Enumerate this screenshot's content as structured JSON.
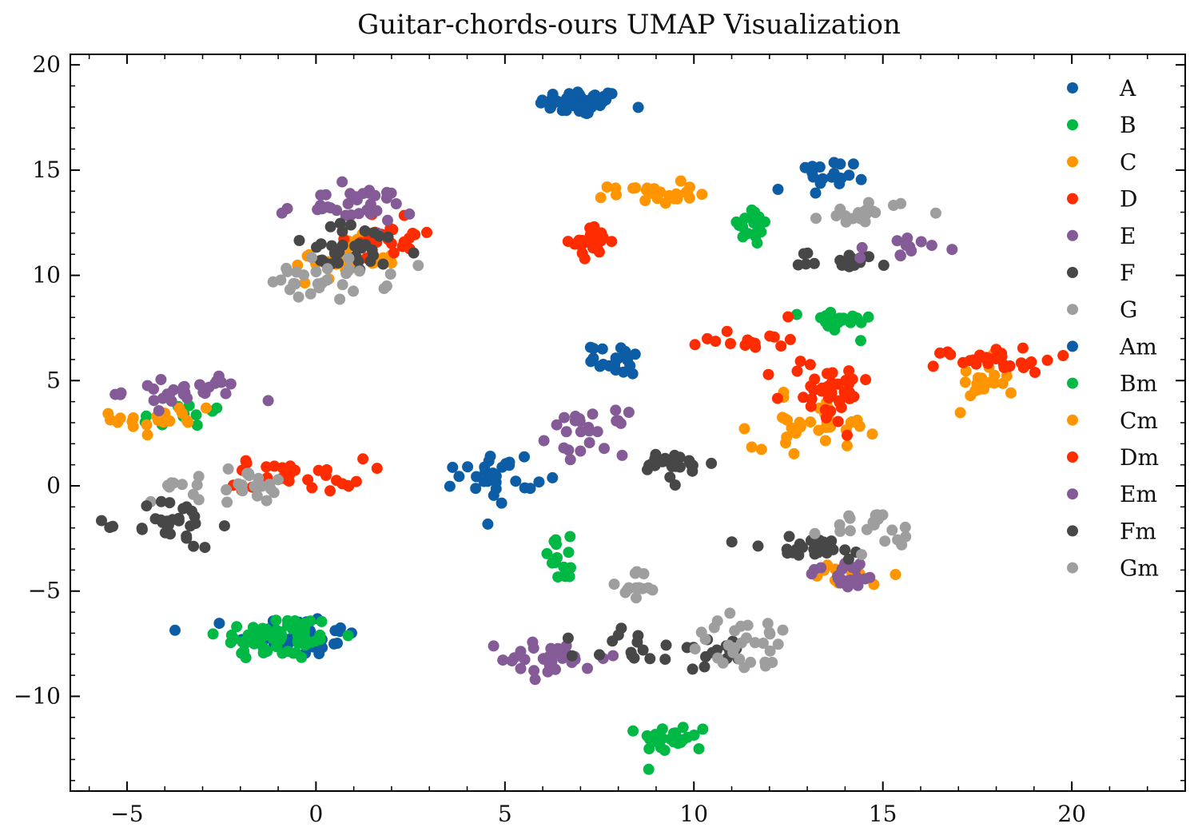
{
  "chart_data": {
    "type": "scatter",
    "title": "Guitar-chords-ours UMAP Visualization",
    "xlabel": "",
    "ylabel": "",
    "xlim": [
      -6.5,
      23.0
    ],
    "ylim": [
      -14.5,
      20.5
    ],
    "xticks": [
      -5,
      0,
      5,
      10,
      15,
      20
    ],
    "yticks": [
      -10,
      -5,
      0,
      5,
      10,
      15,
      20
    ],
    "xtick_labels": [
      "−5",
      "0",
      "5",
      "10",
      "15",
      "20"
    ],
    "ytick_labels": [
      "−10",
      "−5",
      "0",
      "5",
      "10",
      "15",
      "20"
    ],
    "grid": false,
    "legend_position": "top-right",
    "series": [
      {
        "name": "A",
        "color": "#0C5DA5",
        "clusters": [
          {
            "cx": 7.0,
            "cy": 18.2,
            "sx": 0.55,
            "sy": 0.3,
            "n": 60
          },
          {
            "cx": -0.5,
            "cy": -7.1,
            "sx": 0.8,
            "sy": 0.5,
            "n": 40
          }
        ]
      },
      {
        "name": "B",
        "color": "#00B945",
        "clusters": [
          {
            "cx": -1.0,
            "cy": -7.2,
            "sx": 0.8,
            "sy": 0.55,
            "n": 70
          },
          {
            "cx": 9.5,
            "cy": -12.0,
            "sx": 0.45,
            "sy": 0.35,
            "n": 25
          },
          {
            "cx": -3.6,
            "cy": 3.2,
            "sx": 0.6,
            "sy": 0.4,
            "n": 15
          }
        ]
      },
      {
        "name": "C",
        "color": "#FF9500",
        "clusters": [
          {
            "cx": 0.8,
            "cy": 10.8,
            "sx": 0.7,
            "sy": 0.5,
            "n": 30
          },
          {
            "cx": 8.9,
            "cy": 13.9,
            "sx": 0.55,
            "sy": 0.25,
            "n": 25
          },
          {
            "cx": -4.0,
            "cy": 3.2,
            "sx": 0.7,
            "sy": 0.5,
            "n": 20
          }
        ]
      },
      {
        "name": "D",
        "color": "#FF2C00",
        "clusters": [
          {
            "cx": 7.3,
            "cy": 11.6,
            "sx": 0.25,
            "sy": 0.35,
            "n": 25
          },
          {
            "cx": 2.0,
            "cy": 12.0,
            "sx": 0.6,
            "sy": 0.6,
            "n": 25
          },
          {
            "cx": -0.5,
            "cy": 0.5,
            "sx": 0.9,
            "sy": 0.4,
            "n": 30
          }
        ]
      },
      {
        "name": "E",
        "color": "#845B97",
        "clusters": [
          {
            "cx": 0.8,
            "cy": 13.3,
            "sx": 0.9,
            "sy": 0.45,
            "n": 35
          },
          {
            "cx": -3.5,
            "cy": 4.5,
            "sx": 0.8,
            "sy": 0.4,
            "n": 30
          },
          {
            "cx": 7.2,
            "cy": 2.5,
            "sx": 0.5,
            "sy": 0.5,
            "n": 25
          }
        ]
      },
      {
        "name": "F",
        "color": "#474747",
        "clusters": [
          {
            "cx": 1.0,
            "cy": 11.2,
            "sx": 0.9,
            "sy": 0.6,
            "n": 35
          },
          {
            "cx": 9.5,
            "cy": 1.0,
            "sx": 0.5,
            "sy": 0.35,
            "n": 25
          },
          {
            "cx": 14.0,
            "cy": 10.7,
            "sx": 0.6,
            "sy": 0.2,
            "n": 20
          }
        ]
      },
      {
        "name": "G",
        "color": "#9E9E9E",
        "clusters": [
          {
            "cx": 0.3,
            "cy": 9.8,
            "sx": 0.8,
            "sy": 0.5,
            "n": 30
          },
          {
            "cx": -2.5,
            "cy": 0.0,
            "sx": 0.9,
            "sy": 0.4,
            "n": 30
          },
          {
            "cx": 14.6,
            "cy": 13.0,
            "sx": 0.6,
            "sy": 0.3,
            "n": 20
          }
        ]
      },
      {
        "name": "Am",
        "color": "#0C5DA5",
        "clusters": [
          {
            "cx": 4.8,
            "cy": 0.5,
            "sx": 0.5,
            "sy": 0.6,
            "n": 30
          },
          {
            "cx": 8.0,
            "cy": 6.0,
            "sx": 0.35,
            "sy": 0.35,
            "n": 20
          },
          {
            "cx": 13.2,
            "cy": 14.5,
            "sx": 0.5,
            "sy": 0.5,
            "n": 20
          }
        ]
      },
      {
        "name": "Bm",
        "color": "#00B945",
        "clusters": [
          {
            "cx": 13.8,
            "cy": 7.8,
            "sx": 0.45,
            "sy": 0.3,
            "n": 20
          },
          {
            "cx": 11.5,
            "cy": 12.3,
            "sx": 0.35,
            "sy": 0.5,
            "n": 18
          },
          {
            "cx": 6.5,
            "cy": -3.5,
            "sx": 0.3,
            "sy": 0.5,
            "n": 15
          }
        ]
      },
      {
        "name": "Cm",
        "color": "#FF9500",
        "clusters": [
          {
            "cx": 13.2,
            "cy": 3.0,
            "sx": 0.8,
            "sy": 0.6,
            "n": 35
          },
          {
            "cx": 17.6,
            "cy": 4.8,
            "sx": 0.35,
            "sy": 0.6,
            "n": 20
          },
          {
            "cx": 14.0,
            "cy": -4.2,
            "sx": 0.6,
            "sy": 0.3,
            "n": 18
          }
        ]
      },
      {
        "name": "Dm",
        "color": "#FF2C00",
        "clusters": [
          {
            "cx": 13.5,
            "cy": 4.5,
            "sx": 0.6,
            "sy": 0.8,
            "n": 40
          },
          {
            "cx": 18.0,
            "cy": 6.0,
            "sx": 0.8,
            "sy": 0.3,
            "n": 30
          },
          {
            "cx": 11.5,
            "cy": 7.0,
            "sx": 0.6,
            "sy": 0.3,
            "n": 15
          }
        ]
      },
      {
        "name": "Em",
        "color": "#845B97",
        "clusters": [
          {
            "cx": 6.3,
            "cy": -8.2,
            "sx": 0.7,
            "sy": 0.45,
            "n": 30
          },
          {
            "cx": 14.0,
            "cy": -4.2,
            "sx": 0.5,
            "sy": 0.35,
            "n": 20
          },
          {
            "cx": 15.5,
            "cy": 11.3,
            "sx": 0.6,
            "sy": 0.3,
            "n": 12
          }
        ]
      },
      {
        "name": "Fm",
        "color": "#474747",
        "clusters": [
          {
            "cx": -3.8,
            "cy": -1.8,
            "sx": 0.6,
            "sy": 0.6,
            "n": 30
          },
          {
            "cx": 9.5,
            "cy": -7.8,
            "sx": 1.2,
            "sy": 0.5,
            "n": 30
          },
          {
            "cx": 13.0,
            "cy": -3.0,
            "sx": 1.0,
            "sy": 0.3,
            "n": 25
          }
        ]
      },
      {
        "name": "Gm",
        "color": "#9E9E9E",
        "clusters": [
          {
            "cx": 11.5,
            "cy": -7.5,
            "sx": 0.9,
            "sy": 0.7,
            "n": 30
          },
          {
            "cx": 8.5,
            "cy": -4.6,
            "sx": 0.25,
            "sy": 0.4,
            "n": 15
          },
          {
            "cx": 14.8,
            "cy": -2.2,
            "sx": 0.6,
            "sy": 0.5,
            "n": 20
          }
        ]
      }
    ]
  }
}
